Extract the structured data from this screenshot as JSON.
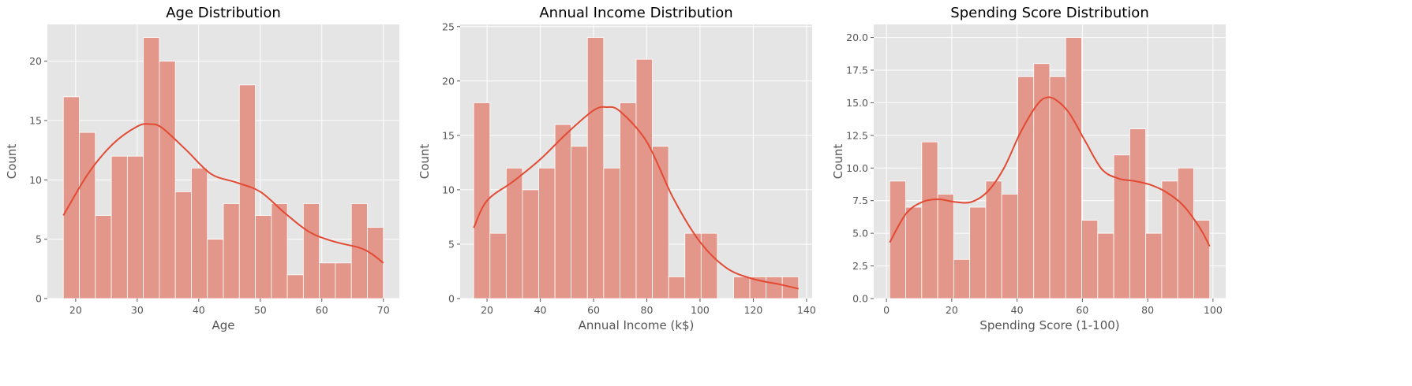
{
  "chart_data": [
    {
      "type": "bar",
      "title": "Age Distribution",
      "xlabel": "Age",
      "ylabel": "Count",
      "xlim": [
        15.4,
        72.6
      ],
      "ylim": [
        0,
        23.1
      ],
      "xticks": [
        20,
        30,
        40,
        50,
        60,
        70
      ],
      "yticks": [
        0,
        5,
        10,
        15,
        20
      ],
      "ytick_labels": [
        "0",
        "5",
        "10",
        "15",
        "20"
      ],
      "bin_start": 18,
      "bin_end": 70,
      "bins": 20,
      "values": [
        17,
        14,
        7,
        12,
        12,
        22,
        20,
        9,
        11,
        5,
        8,
        18,
        7,
        8,
        2,
        8,
        3,
        3,
        8,
        6
      ],
      "kde_x": [
        18,
        22,
        26,
        30,
        32,
        34,
        38,
        42,
        46,
        50,
        54,
        58,
        62,
        66,
        68,
        70
      ],
      "kde_y": [
        7,
        10.5,
        13,
        14.5,
        14.7,
        14.4,
        12.5,
        10.5,
        9.8,
        9.0,
        7.2,
        5.6,
        4.8,
        4.3,
        3.8,
        3.0
      ],
      "grid": true
    },
    {
      "type": "bar",
      "title": "Annual Income Distribution",
      "xlabel": "Annual Income (k$)",
      "ylabel": "Count",
      "xlim": [
        9.9,
        142.1
      ],
      "ylim": [
        0,
        25.2
      ],
      "xticks": [
        20,
        40,
        60,
        80,
        100,
        120,
        140
      ],
      "yticks": [
        0,
        5,
        10,
        15,
        20,
        25
      ],
      "ytick_labels": [
        "0",
        "5",
        "10",
        "15",
        "20",
        "25"
      ],
      "bin_start": 15,
      "bin_end": 137,
      "bins": 20,
      "values": [
        18,
        6,
        12,
        10,
        12,
        16,
        14,
        24,
        12,
        18,
        22,
        14,
        2,
        6,
        6,
        0,
        2,
        2,
        2,
        2
      ],
      "kde_x": [
        15,
        20,
        30,
        40,
        50,
        60,
        65,
        70,
        80,
        90,
        100,
        110,
        120,
        130,
        137
      ],
      "kde_y": [
        6.5,
        9.0,
        10.8,
        12.8,
        15.2,
        17.3,
        17.6,
        17.2,
        14.4,
        9.2,
        5.2,
        2.8,
        1.8,
        1.3,
        0.9
      ],
      "grid": true
    },
    {
      "type": "bar",
      "title": "Spending Score Distribution",
      "xlabel": "Spending Score (1-100)",
      "ylabel": "Count",
      "xlim": [
        -3.9,
        103.9
      ],
      "ylim": [
        0,
        21
      ],
      "xticks": [
        0,
        20,
        40,
        60,
        80,
        100
      ],
      "yticks": [
        0,
        2.5,
        5,
        7.5,
        10,
        12.5,
        15,
        17.5,
        20
      ],
      "ytick_labels": [
        "0.0",
        "2.5",
        "5.0",
        "7.5",
        "10.0",
        "12.5",
        "15.0",
        "17.5",
        "20.0"
      ],
      "bin_start": 1,
      "bin_end": 99,
      "bins": 20,
      "values": [
        9,
        7,
        12,
        8,
        3,
        7,
        9,
        8,
        17,
        18,
        17,
        20,
        6,
        5,
        11,
        13,
        5,
        9,
        10,
        6
      ],
      "kde_x": [
        1,
        6,
        11,
        16,
        21,
        26,
        31,
        36,
        41,
        46,
        49,
        52,
        56,
        61,
        66,
        71,
        76,
        81,
        86,
        91,
        96,
        99
      ],
      "kde_y": [
        4.3,
        6.5,
        7.4,
        7.6,
        7.4,
        7.4,
        8.2,
        10.0,
        12.7,
        14.8,
        15.4,
        15.2,
        14.2,
        12.0,
        9.9,
        9.2,
        9.0,
        8.7,
        8.1,
        7.1,
        5.4,
        4.0
      ],
      "grid": true
    }
  ]
}
